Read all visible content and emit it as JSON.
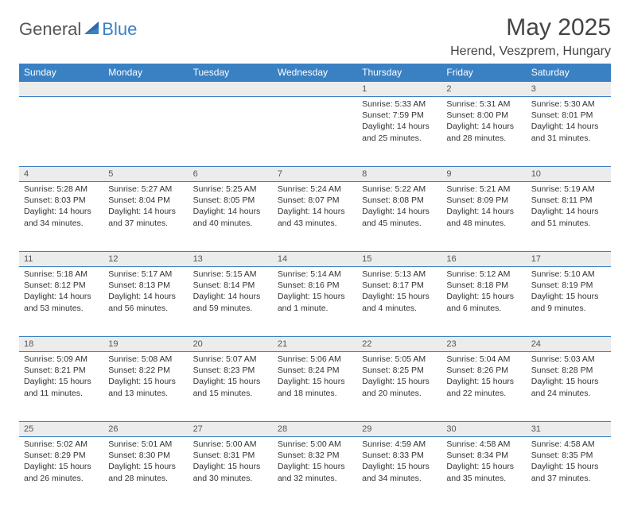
{
  "logo": {
    "general": "General",
    "blue": "Blue"
  },
  "header": {
    "month_title": "May 2025",
    "location": "Herend, Veszprem, Hungary"
  },
  "colors": {
    "header_bg": "#3a81c4",
    "header_text": "#ffffff",
    "row_border": "#3a81c4",
    "daynum_bg": "#ececec",
    "text": "#333333"
  },
  "weekdays": [
    "Sunday",
    "Monday",
    "Tuesday",
    "Wednesday",
    "Thursday",
    "Friday",
    "Saturday"
  ],
  "weeks": [
    [
      {
        "n": "",
        "sr": "",
        "ss": "",
        "dl": ""
      },
      {
        "n": "",
        "sr": "",
        "ss": "",
        "dl": ""
      },
      {
        "n": "",
        "sr": "",
        "ss": "",
        "dl": ""
      },
      {
        "n": "",
        "sr": "",
        "ss": "",
        "dl": ""
      },
      {
        "n": "1",
        "sr": "Sunrise: 5:33 AM",
        "ss": "Sunset: 7:59 PM",
        "dl": "Daylight: 14 hours and 25 minutes."
      },
      {
        "n": "2",
        "sr": "Sunrise: 5:31 AM",
        "ss": "Sunset: 8:00 PM",
        "dl": "Daylight: 14 hours and 28 minutes."
      },
      {
        "n": "3",
        "sr": "Sunrise: 5:30 AM",
        "ss": "Sunset: 8:01 PM",
        "dl": "Daylight: 14 hours and 31 minutes."
      }
    ],
    [
      {
        "n": "4",
        "sr": "Sunrise: 5:28 AM",
        "ss": "Sunset: 8:03 PM",
        "dl": "Daylight: 14 hours and 34 minutes."
      },
      {
        "n": "5",
        "sr": "Sunrise: 5:27 AM",
        "ss": "Sunset: 8:04 PM",
        "dl": "Daylight: 14 hours and 37 minutes."
      },
      {
        "n": "6",
        "sr": "Sunrise: 5:25 AM",
        "ss": "Sunset: 8:05 PM",
        "dl": "Daylight: 14 hours and 40 minutes."
      },
      {
        "n": "7",
        "sr": "Sunrise: 5:24 AM",
        "ss": "Sunset: 8:07 PM",
        "dl": "Daylight: 14 hours and 43 minutes."
      },
      {
        "n": "8",
        "sr": "Sunrise: 5:22 AM",
        "ss": "Sunset: 8:08 PM",
        "dl": "Daylight: 14 hours and 45 minutes."
      },
      {
        "n": "9",
        "sr": "Sunrise: 5:21 AM",
        "ss": "Sunset: 8:09 PM",
        "dl": "Daylight: 14 hours and 48 minutes."
      },
      {
        "n": "10",
        "sr": "Sunrise: 5:19 AM",
        "ss": "Sunset: 8:11 PM",
        "dl": "Daylight: 14 hours and 51 minutes."
      }
    ],
    [
      {
        "n": "11",
        "sr": "Sunrise: 5:18 AM",
        "ss": "Sunset: 8:12 PM",
        "dl": "Daylight: 14 hours and 53 minutes."
      },
      {
        "n": "12",
        "sr": "Sunrise: 5:17 AM",
        "ss": "Sunset: 8:13 PM",
        "dl": "Daylight: 14 hours and 56 minutes."
      },
      {
        "n": "13",
        "sr": "Sunrise: 5:15 AM",
        "ss": "Sunset: 8:14 PM",
        "dl": "Daylight: 14 hours and 59 minutes."
      },
      {
        "n": "14",
        "sr": "Sunrise: 5:14 AM",
        "ss": "Sunset: 8:16 PM",
        "dl": "Daylight: 15 hours and 1 minute."
      },
      {
        "n": "15",
        "sr": "Sunrise: 5:13 AM",
        "ss": "Sunset: 8:17 PM",
        "dl": "Daylight: 15 hours and 4 minutes."
      },
      {
        "n": "16",
        "sr": "Sunrise: 5:12 AM",
        "ss": "Sunset: 8:18 PM",
        "dl": "Daylight: 15 hours and 6 minutes."
      },
      {
        "n": "17",
        "sr": "Sunrise: 5:10 AM",
        "ss": "Sunset: 8:19 PM",
        "dl": "Daylight: 15 hours and 9 minutes."
      }
    ],
    [
      {
        "n": "18",
        "sr": "Sunrise: 5:09 AM",
        "ss": "Sunset: 8:21 PM",
        "dl": "Daylight: 15 hours and 11 minutes."
      },
      {
        "n": "19",
        "sr": "Sunrise: 5:08 AM",
        "ss": "Sunset: 8:22 PM",
        "dl": "Daylight: 15 hours and 13 minutes."
      },
      {
        "n": "20",
        "sr": "Sunrise: 5:07 AM",
        "ss": "Sunset: 8:23 PM",
        "dl": "Daylight: 15 hours and 15 minutes."
      },
      {
        "n": "21",
        "sr": "Sunrise: 5:06 AM",
        "ss": "Sunset: 8:24 PM",
        "dl": "Daylight: 15 hours and 18 minutes."
      },
      {
        "n": "22",
        "sr": "Sunrise: 5:05 AM",
        "ss": "Sunset: 8:25 PM",
        "dl": "Daylight: 15 hours and 20 minutes."
      },
      {
        "n": "23",
        "sr": "Sunrise: 5:04 AM",
        "ss": "Sunset: 8:26 PM",
        "dl": "Daylight: 15 hours and 22 minutes."
      },
      {
        "n": "24",
        "sr": "Sunrise: 5:03 AM",
        "ss": "Sunset: 8:28 PM",
        "dl": "Daylight: 15 hours and 24 minutes."
      }
    ],
    [
      {
        "n": "25",
        "sr": "Sunrise: 5:02 AM",
        "ss": "Sunset: 8:29 PM",
        "dl": "Daylight: 15 hours and 26 minutes."
      },
      {
        "n": "26",
        "sr": "Sunrise: 5:01 AM",
        "ss": "Sunset: 8:30 PM",
        "dl": "Daylight: 15 hours and 28 minutes."
      },
      {
        "n": "27",
        "sr": "Sunrise: 5:00 AM",
        "ss": "Sunset: 8:31 PM",
        "dl": "Daylight: 15 hours and 30 minutes."
      },
      {
        "n": "28",
        "sr": "Sunrise: 5:00 AM",
        "ss": "Sunset: 8:32 PM",
        "dl": "Daylight: 15 hours and 32 minutes."
      },
      {
        "n": "29",
        "sr": "Sunrise: 4:59 AM",
        "ss": "Sunset: 8:33 PM",
        "dl": "Daylight: 15 hours and 34 minutes."
      },
      {
        "n": "30",
        "sr": "Sunrise: 4:58 AM",
        "ss": "Sunset: 8:34 PM",
        "dl": "Daylight: 15 hours and 35 minutes."
      },
      {
        "n": "31",
        "sr": "Sunrise: 4:58 AM",
        "ss": "Sunset: 8:35 PM",
        "dl": "Daylight: 15 hours and 37 minutes."
      }
    ]
  ]
}
